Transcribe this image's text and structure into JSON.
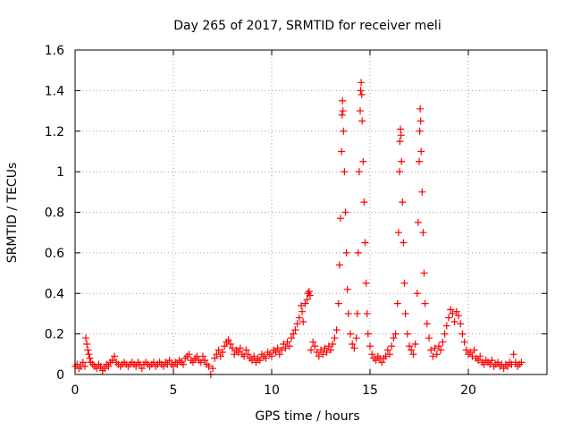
{
  "chart_data": {
    "type": "scatter",
    "title": "Day 265 of 2017, SRMTID for receiver meli",
    "xlabel": "GPS time / hours",
    "ylabel": "SRMTID / TECUs",
    "xlim": [
      0,
      24
    ],
    "ylim": [
      0,
      1.6
    ],
    "xticks": [
      0,
      5,
      10,
      15,
      20
    ],
    "xtick_labels": [
      "0",
      "5",
      "10",
      "15",
      "20"
    ],
    "yticks": [
      0,
      0.2,
      0.4,
      0.6,
      0.8,
      1.0,
      1.2,
      1.4,
      1.6
    ],
    "ytick_labels": [
      "0",
      "0.2",
      "0.4",
      "0.6",
      "0.8",
      "1",
      "1.2",
      "1.4",
      "1.6"
    ],
    "grid": true,
    "marker": "+",
    "series": [
      {
        "name": "SRMTID",
        "color": "#ff0000",
        "points": [
          [
            0.0,
            0.04
          ],
          [
            0.1,
            0.05
          ],
          [
            0.2,
            0.03
          ],
          [
            0.3,
            0.04
          ],
          [
            0.4,
            0.06
          ],
          [
            0.5,
            0.04
          ],
          [
            0.55,
            0.18
          ],
          [
            0.6,
            0.15
          ],
          [
            0.65,
            0.12
          ],
          [
            0.7,
            0.1
          ],
          [
            0.75,
            0.08
          ],
          [
            0.8,
            0.06
          ],
          [
            0.9,
            0.05
          ],
          [
            1.0,
            0.04
          ],
          [
            1.1,
            0.03
          ],
          [
            1.2,
            0.05
          ],
          [
            1.3,
            0.04
          ],
          [
            1.4,
            0.02
          ],
          [
            1.5,
            0.03
          ],
          [
            1.6,
            0.05
          ],
          [
            1.7,
            0.04
          ],
          [
            1.8,
            0.06
          ],
          [
            1.9,
            0.07
          ],
          [
            2.0,
            0.09
          ],
          [
            2.1,
            0.06
          ],
          [
            2.2,
            0.05
          ],
          [
            2.3,
            0.04
          ],
          [
            2.4,
            0.05
          ],
          [
            2.5,
            0.06
          ],
          [
            2.6,
            0.05
          ],
          [
            2.7,
            0.04
          ],
          [
            2.8,
            0.05
          ],
          [
            2.9,
            0.06
          ],
          [
            3.0,
            0.05
          ],
          [
            3.1,
            0.04
          ],
          [
            3.2,
            0.06
          ],
          [
            3.3,
            0.05
          ],
          [
            3.4,
            0.03
          ],
          [
            3.5,
            0.05
          ],
          [
            3.6,
            0.06
          ],
          [
            3.7,
            0.05
          ],
          [
            3.8,
            0.04
          ],
          [
            3.9,
            0.05
          ],
          [
            4.0,
            0.06
          ],
          [
            4.1,
            0.04
          ],
          [
            4.2,
            0.05
          ],
          [
            4.3,
            0.06
          ],
          [
            4.4,
            0.05
          ],
          [
            4.5,
            0.04
          ],
          [
            4.6,
            0.06
          ],
          [
            4.7,
            0.05
          ],
          [
            4.8,
            0.07
          ],
          [
            4.9,
            0.05
          ],
          [
            5.0,
            0.04
          ],
          [
            5.1,
            0.06
          ],
          [
            5.2,
            0.05
          ],
          [
            5.3,
            0.07
          ],
          [
            5.4,
            0.06
          ],
          [
            5.5,
            0.05
          ],
          [
            5.6,
            0.08
          ],
          [
            5.7,
            0.09
          ],
          [
            5.8,
            0.1
          ],
          [
            5.9,
            0.07
          ],
          [
            6.0,
            0.06
          ],
          [
            6.1,
            0.08
          ],
          [
            6.2,
            0.09
          ],
          [
            6.3,
            0.07
          ],
          [
            6.4,
            0.06
          ],
          [
            6.5,
            0.09
          ],
          [
            6.6,
            0.07
          ],
          [
            6.7,
            0.05
          ],
          [
            6.8,
            0.04
          ],
          [
            6.9,
            0.0
          ],
          [
            7.0,
            0.03
          ],
          [
            7.1,
            0.08
          ],
          [
            7.2,
            0.1
          ],
          [
            7.3,
            0.12
          ],
          [
            7.4,
            0.09
          ],
          [
            7.5,
            0.11
          ],
          [
            7.6,
            0.14
          ],
          [
            7.7,
            0.16
          ],
          [
            7.8,
            0.17
          ],
          [
            7.9,
            0.15
          ],
          [
            8.0,
            0.13
          ],
          [
            8.1,
            0.1
          ],
          [
            8.2,
            0.12
          ],
          [
            8.3,
            0.11
          ],
          [
            8.4,
            0.13
          ],
          [
            8.5,
            0.1
          ],
          [
            8.6,
            0.09
          ],
          [
            8.7,
            0.12
          ],
          [
            8.8,
            0.1
          ],
          [
            8.9,
            0.08
          ],
          [
            9.0,
            0.07
          ],
          [
            9.1,
            0.09
          ],
          [
            9.2,
            0.06
          ],
          [
            9.3,
            0.08
          ],
          [
            9.4,
            0.07
          ],
          [
            9.5,
            0.1
          ],
          [
            9.6,
            0.09
          ],
          [
            9.7,
            0.08
          ],
          [
            9.8,
            0.11
          ],
          [
            9.9,
            0.1
          ],
          [
            10.0,
            0.09
          ],
          [
            10.1,
            0.12
          ],
          [
            10.2,
            0.11
          ],
          [
            10.3,
            0.13
          ],
          [
            10.4,
            0.1
          ],
          [
            10.5,
            0.12
          ],
          [
            10.6,
            0.15
          ],
          [
            10.7,
            0.13
          ],
          [
            10.8,
            0.16
          ],
          [
            10.9,
            0.14
          ],
          [
            11.0,
            0.18
          ],
          [
            11.1,
            0.2
          ],
          [
            11.2,
            0.22
          ],
          [
            11.3,
            0.25
          ],
          [
            11.4,
            0.28
          ],
          [
            11.5,
            0.34
          ],
          [
            11.55,
            0.31
          ],
          [
            11.6,
            0.26
          ],
          [
            11.7,
            0.35
          ],
          [
            11.8,
            0.37
          ],
          [
            11.85,
            0.4
          ],
          [
            11.9,
            0.41
          ],
          [
            11.95,
            0.39
          ],
          [
            12.0,
            0.12
          ],
          [
            12.1,
            0.16
          ],
          [
            12.2,
            0.14
          ],
          [
            12.3,
            0.11
          ],
          [
            12.4,
            0.09
          ],
          [
            12.5,
            0.12
          ],
          [
            12.6,
            0.1
          ],
          [
            12.7,
            0.13
          ],
          [
            12.8,
            0.11
          ],
          [
            12.9,
            0.14
          ],
          [
            13.0,
            0.12
          ],
          [
            13.1,
            0.15
          ],
          [
            13.2,
            0.18
          ],
          [
            13.3,
            0.22
          ],
          [
            13.4,
            0.35
          ],
          [
            13.45,
            0.54
          ],
          [
            13.5,
            0.77
          ],
          [
            13.55,
            1.1
          ],
          [
            13.58,
            1.28
          ],
          [
            13.6,
            1.35
          ],
          [
            13.62,
            1.3
          ],
          [
            13.65,
            1.2
          ],
          [
            13.7,
            1.0
          ],
          [
            13.75,
            0.8
          ],
          [
            13.8,
            0.6
          ],
          [
            13.85,
            0.42
          ],
          [
            13.9,
            0.3
          ],
          [
            14.0,
            0.2
          ],
          [
            14.1,
            0.15
          ],
          [
            14.2,
            0.13
          ],
          [
            14.3,
            0.18
          ],
          [
            14.35,
            0.3
          ],
          [
            14.4,
            0.6
          ],
          [
            14.45,
            1.0
          ],
          [
            14.5,
            1.3
          ],
          [
            14.52,
            1.4
          ],
          [
            14.55,
            1.44
          ],
          [
            14.58,
            1.38
          ],
          [
            14.6,
            1.25
          ],
          [
            14.65,
            1.05
          ],
          [
            14.7,
            0.85
          ],
          [
            14.75,
            0.65
          ],
          [
            14.8,
            0.45
          ],
          [
            14.85,
            0.3
          ],
          [
            14.9,
            0.2
          ],
          [
            15.0,
            0.14
          ],
          [
            15.1,
            0.1
          ],
          [
            15.2,
            0.08
          ],
          [
            15.3,
            0.07
          ],
          [
            15.4,
            0.09
          ],
          [
            15.5,
            0.08
          ],
          [
            15.6,
            0.06
          ],
          [
            15.7,
            0.08
          ],
          [
            15.8,
            0.09
          ],
          [
            15.9,
            0.12
          ],
          [
            16.0,
            0.1
          ],
          [
            16.1,
            0.14
          ],
          [
            16.2,
            0.18
          ],
          [
            16.3,
            0.2
          ],
          [
            16.4,
            0.35
          ],
          [
            16.45,
            0.7
          ],
          [
            16.5,
            1.0
          ],
          [
            16.52,
            1.15
          ],
          [
            16.55,
            1.21
          ],
          [
            16.58,
            1.18
          ],
          [
            16.6,
            1.05
          ],
          [
            16.65,
            0.85
          ],
          [
            16.7,
            0.65
          ],
          [
            16.75,
            0.45
          ],
          [
            16.8,
            0.3
          ],
          [
            16.9,
            0.2
          ],
          [
            17.0,
            0.14
          ],
          [
            17.1,
            0.12
          ],
          [
            17.2,
            0.1
          ],
          [
            17.3,
            0.15
          ],
          [
            17.4,
            0.4
          ],
          [
            17.45,
            0.75
          ],
          [
            17.5,
            1.05
          ],
          [
            17.53,
            1.2
          ],
          [
            17.55,
            1.31
          ],
          [
            17.58,
            1.25
          ],
          [
            17.6,
            1.1
          ],
          [
            17.65,
            0.9
          ],
          [
            17.7,
            0.7
          ],
          [
            17.75,
            0.5
          ],
          [
            17.8,
            0.35
          ],
          [
            17.9,
            0.25
          ],
          [
            18.0,
            0.18
          ],
          [
            18.1,
            0.12
          ],
          [
            18.2,
            0.09
          ],
          [
            18.3,
            0.13
          ],
          [
            18.4,
            0.1
          ],
          [
            18.5,
            0.14
          ],
          [
            18.6,
            0.12
          ],
          [
            18.7,
            0.16
          ],
          [
            18.8,
            0.2
          ],
          [
            18.9,
            0.24
          ],
          [
            19.0,
            0.28
          ],
          [
            19.1,
            0.32
          ],
          [
            19.2,
            0.3
          ],
          [
            19.3,
            0.26
          ],
          [
            19.4,
            0.31
          ],
          [
            19.5,
            0.29
          ],
          [
            19.6,
            0.25
          ],
          [
            19.7,
            0.2
          ],
          [
            19.8,
            0.16
          ],
          [
            19.9,
            0.12
          ],
          [
            20.0,
            0.1
          ],
          [
            20.1,
            0.11
          ],
          [
            20.2,
            0.09
          ],
          [
            20.3,
            0.12
          ],
          [
            20.4,
            0.08
          ],
          [
            20.5,
            0.07
          ],
          [
            20.6,
            0.09
          ],
          [
            20.7,
            0.06
          ],
          [
            20.8,
            0.05
          ],
          [
            20.9,
            0.07
          ],
          [
            21.0,
            0.06
          ],
          [
            21.1,
            0.05
          ],
          [
            21.2,
            0.07
          ],
          [
            21.3,
            0.04
          ],
          [
            21.4,
            0.05
          ],
          [
            21.5,
            0.06
          ],
          [
            21.6,
            0.04
          ],
          [
            21.7,
            0.05
          ],
          [
            21.8,
            0.03
          ],
          [
            21.9,
            0.05
          ],
          [
            22.0,
            0.04
          ],
          [
            22.1,
            0.06
          ],
          [
            22.2,
            0.05
          ],
          [
            22.3,
            0.1
          ],
          [
            22.4,
            0.06
          ],
          [
            22.5,
            0.04
          ],
          [
            22.6,
            0.05
          ],
          [
            22.7,
            0.06
          ]
        ]
      }
    ]
  }
}
